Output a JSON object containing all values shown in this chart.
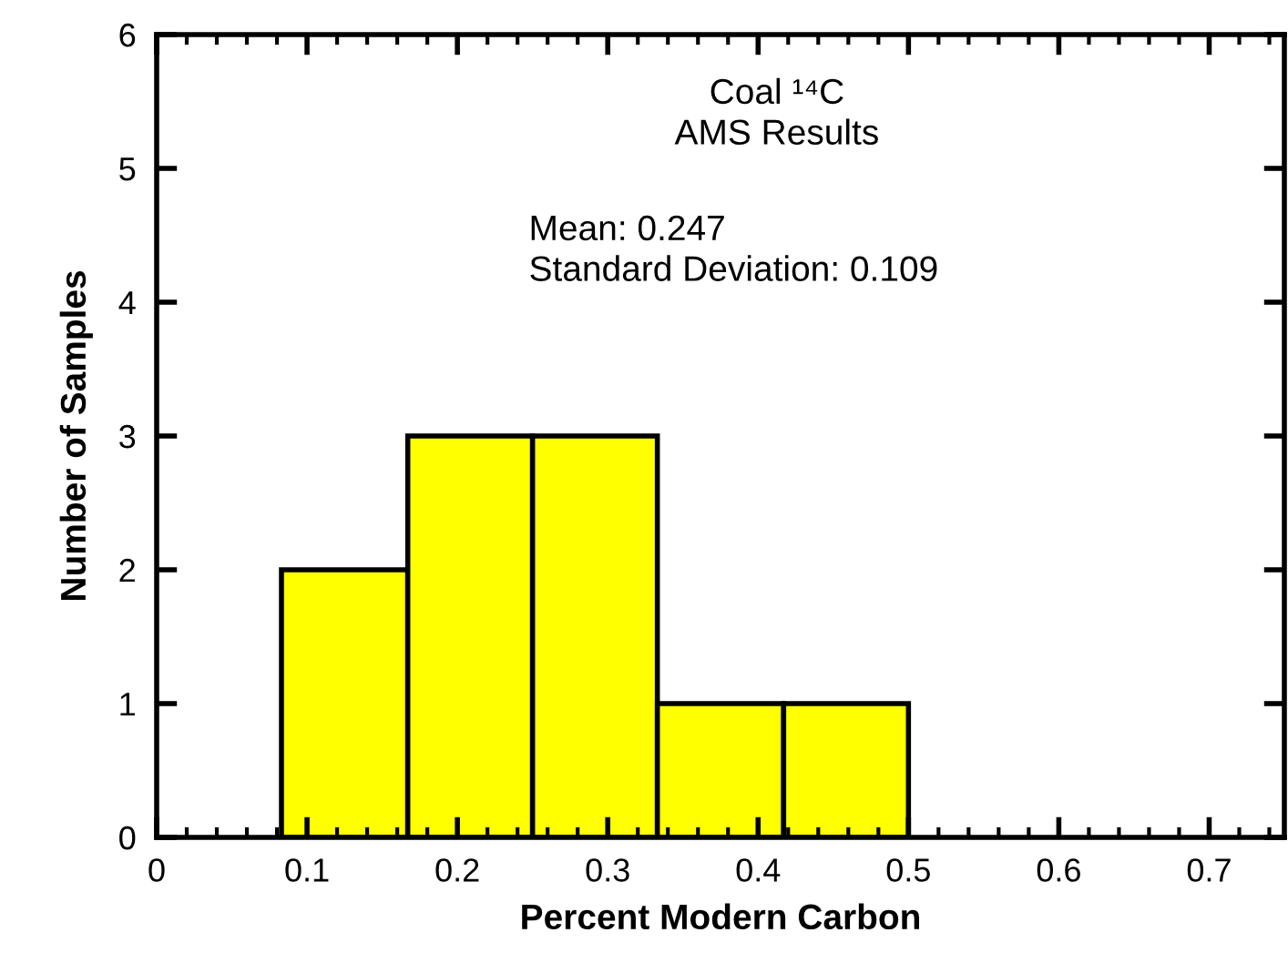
{
  "chart_data": {
    "type": "histogram",
    "xlabel": "Percent Modern Carbon",
    "ylabel": "Number of Samples",
    "bins": [
      0.083,
      0.167,
      0.25,
      0.333,
      0.417,
      0.5
    ],
    "values": [
      2,
      3,
      3,
      1,
      1
    ],
    "color": "#ffff00",
    "xlim": [
      0,
      0.75
    ],
    "xticks": [
      0,
      0.1,
      0.2,
      0.3,
      0.4,
      0.5,
      0.6,
      0.7
    ],
    "ylim": [
      0,
      6
    ],
    "yticks": [
      0,
      1,
      2,
      3,
      4,
      5,
      6
    ],
    "grid": false,
    "legend": false,
    "annotations": [
      "Coal ¹⁴C\nAMS Results",
      "Mean: 0.247\nStandard Deviation: 0.109"
    ]
  }
}
